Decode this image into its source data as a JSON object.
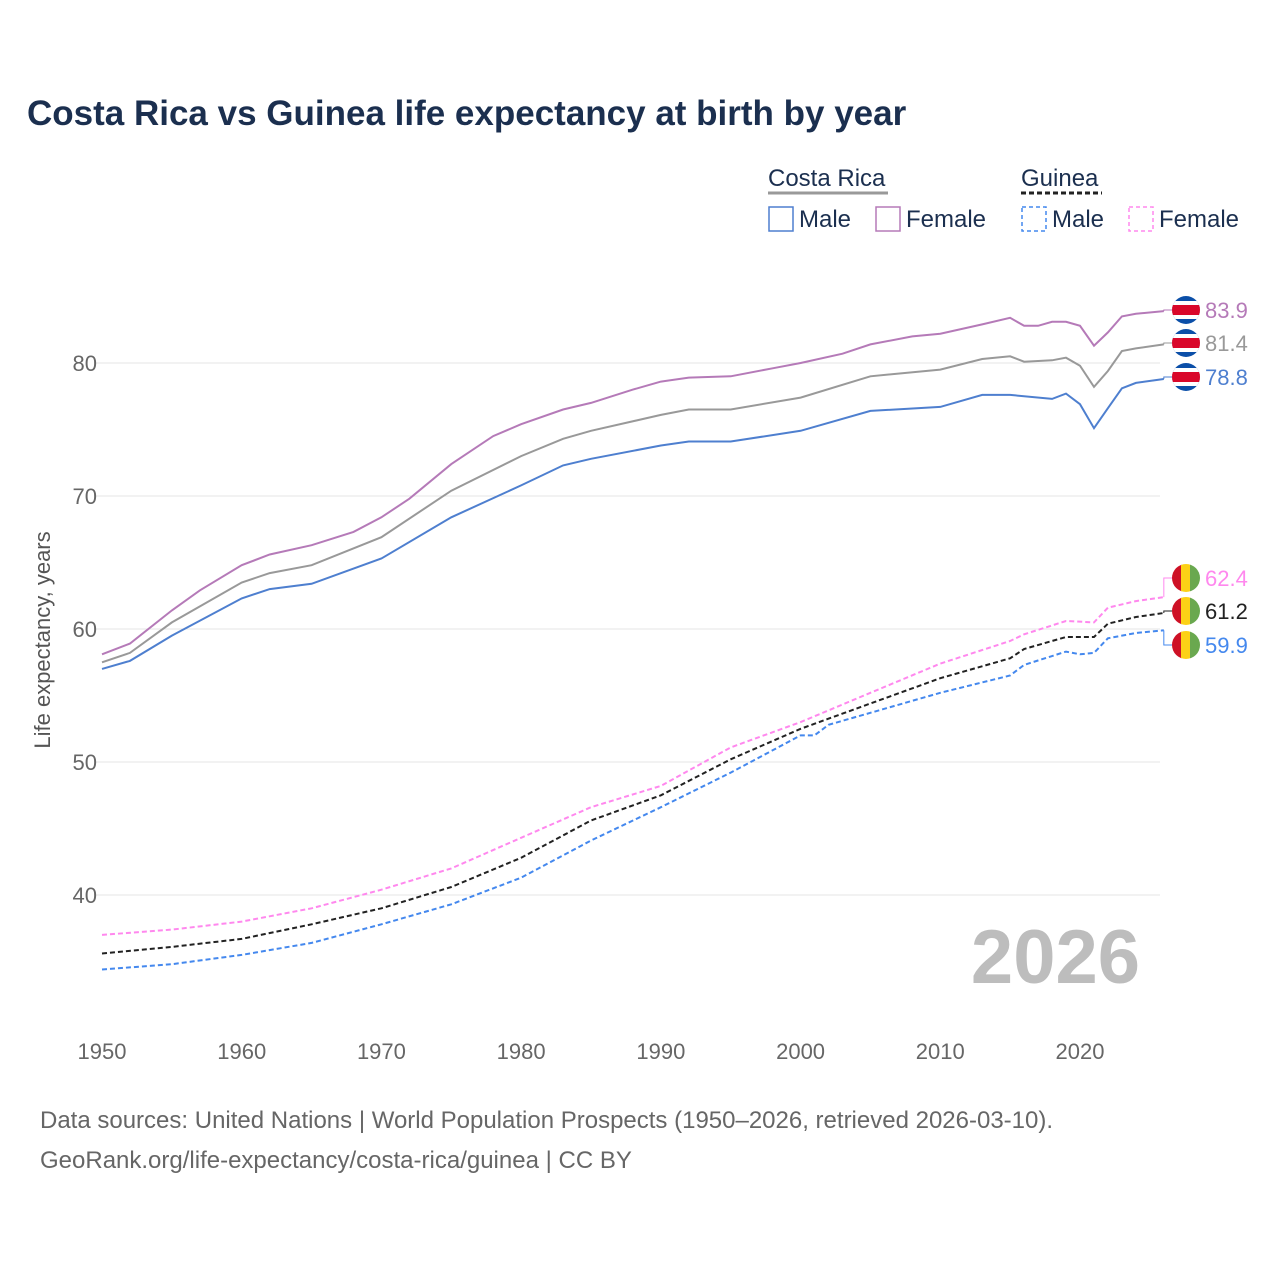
{
  "chart_data": {
    "type": "line",
    "title": "Costa Rica vs Guinea life expectancy at birth by year",
    "xlabel": "",
    "ylabel": "Life expectancy, years",
    "xlim": [
      1950,
      2026
    ],
    "ylim": [
      31,
      87
    ],
    "x_ticks": [
      "1950",
      "1960",
      "1970",
      "1980",
      "1990",
      "2000",
      "2010",
      "2020"
    ],
    "y_ticks": [
      "40",
      "50",
      "60",
      "70",
      "80"
    ],
    "grid": true,
    "year_watermark": "2026",
    "legend": {
      "placement": "top-right",
      "groups": [
        {
          "label": "Costa Rica",
          "items": [
            "Male",
            "Female"
          ]
        },
        {
          "label": "Guinea",
          "items": [
            "Male",
            "Female"
          ]
        }
      ]
    },
    "series": [
      {
        "name": "Costa Rica Female",
        "country": "Costa Rica",
        "color": "#b57ab8",
        "dashed": false,
        "end_label": "83.9",
        "x": [
          1950,
          1952,
          1955,
          1957,
          1960,
          1962,
          1965,
          1968,
          1970,
          1972,
          1975,
          1978,
          1980,
          1983,
          1985,
          1988,
          1990,
          1992,
          1995,
          1998,
          2000,
          2003,
          2005,
          2008,
          2010,
          2013,
          2015,
          2016,
          2017,
          2018,
          2019,
          2020,
          2021,
          2022,
          2023,
          2024,
          2026
        ],
        "y": [
          58.1,
          58.9,
          61.4,
          62.9,
          64.8,
          65.6,
          66.3,
          67.3,
          68.4,
          69.8,
          72.4,
          74.5,
          75.4,
          76.5,
          77.0,
          78.0,
          78.6,
          78.9,
          79.0,
          79.6,
          80.0,
          80.7,
          81.4,
          82.0,
          82.2,
          82.9,
          83.4,
          82.8,
          82.8,
          83.1,
          83.1,
          82.8,
          81.3,
          82.3,
          83.5,
          83.7,
          83.9
        ]
      },
      {
        "name": "Costa Rica Total",
        "country": "Costa Rica",
        "color": "#999999",
        "dashed": false,
        "end_label": "81.4",
        "x": [
          1950,
          1952,
          1955,
          1960,
          1962,
          1965,
          1970,
          1975,
          1980,
          1983,
          1985,
          1990,
          1992,
          1995,
          2000,
          2005,
          2010,
          2013,
          2015,
          2016,
          2018,
          2019,
          2020,
          2021,
          2022,
          2023,
          2024,
          2026
        ],
        "y": [
          57.5,
          58.2,
          60.5,
          63.5,
          64.2,
          64.8,
          66.9,
          70.4,
          73.0,
          74.3,
          74.9,
          76.1,
          76.5,
          76.5,
          77.4,
          79.0,
          79.5,
          80.3,
          80.5,
          80.1,
          80.2,
          80.4,
          79.8,
          78.2,
          79.4,
          80.9,
          81.1,
          81.4
        ]
      },
      {
        "name": "Costa Rica Male",
        "country": "Costa Rica",
        "color": "#4e7fcf",
        "dashed": false,
        "end_label": "78.8",
        "x": [
          1950,
          1952,
          1955,
          1960,
          1962,
          1965,
          1970,
          1975,
          1980,
          1983,
          1985,
          1990,
          1992,
          1995,
          2000,
          2005,
          2010,
          2013,
          2015,
          2018,
          2019,
          2020,
          2021,
          2022,
          2023,
          2024,
          2026
        ],
        "y": [
          57.0,
          57.6,
          59.5,
          62.3,
          63.0,
          63.4,
          65.3,
          68.4,
          70.8,
          72.3,
          72.8,
          73.8,
          74.1,
          74.1,
          74.9,
          76.4,
          76.7,
          77.6,
          77.6,
          77.3,
          77.7,
          76.9,
          75.1,
          76.6,
          78.1,
          78.5,
          78.8
        ]
      },
      {
        "name": "Guinea Female",
        "country": "Guinea",
        "color": "#ff88ee",
        "dashed": true,
        "end_label": "62.4",
        "x": [
          1950,
          1955,
          1960,
          1965,
          1970,
          1975,
          1980,
          1985,
          1990,
          1995,
          2000,
          2005,
          2010,
          2015,
          2016,
          2019,
          2021,
          2022,
          2024,
          2026
        ],
        "y": [
          37.0,
          37.4,
          38.0,
          39.0,
          40.4,
          42.0,
          44.3,
          46.6,
          48.2,
          51.1,
          53.0,
          55.2,
          57.4,
          59.1,
          59.6,
          60.6,
          60.5,
          61.6,
          62.1,
          62.4
        ]
      },
      {
        "name": "Guinea Total",
        "country": "Guinea",
        "color": "#222222",
        "dashed": true,
        "end_label": "61.2",
        "x": [
          1950,
          1955,
          1960,
          1965,
          1970,
          1975,
          1980,
          1985,
          1990,
          1995,
          2000,
          2005,
          2010,
          2015,
          2016,
          2019,
          2021,
          2022,
          2024,
          2026
        ],
        "y": [
          35.6,
          36.1,
          36.7,
          37.8,
          39.0,
          40.6,
          42.8,
          45.6,
          47.5,
          50.2,
          52.5,
          54.4,
          56.3,
          57.8,
          58.5,
          59.4,
          59.4,
          60.4,
          60.9,
          61.2
        ]
      },
      {
        "name": "Guinea Male",
        "country": "Guinea",
        "color": "#4488ee",
        "dashed": true,
        "end_label": "59.9",
        "x": [
          1950,
          1955,
          1960,
          1965,
          1970,
          1975,
          1980,
          1985,
          1990,
          1995,
          2000,
          2001,
          2002,
          2005,
          2010,
          2015,
          2016,
          2019,
          2020,
          2021,
          2022,
          2024,
          2026
        ],
        "y": [
          34.4,
          34.8,
          35.5,
          36.4,
          37.8,
          39.3,
          41.3,
          44.1,
          46.6,
          49.2,
          52.0,
          52.0,
          52.8,
          53.7,
          55.2,
          56.5,
          57.3,
          58.3,
          58.1,
          58.2,
          59.3,
          59.7,
          59.9
        ]
      }
    ]
  },
  "footer": {
    "line1": "Data sources: United Nations | World Population Prospects (1950–2026, retrieved 2026-03-10).",
    "line2": "GeoRank.org/life-expectancy/costa-rica/guinea | CC BY"
  }
}
